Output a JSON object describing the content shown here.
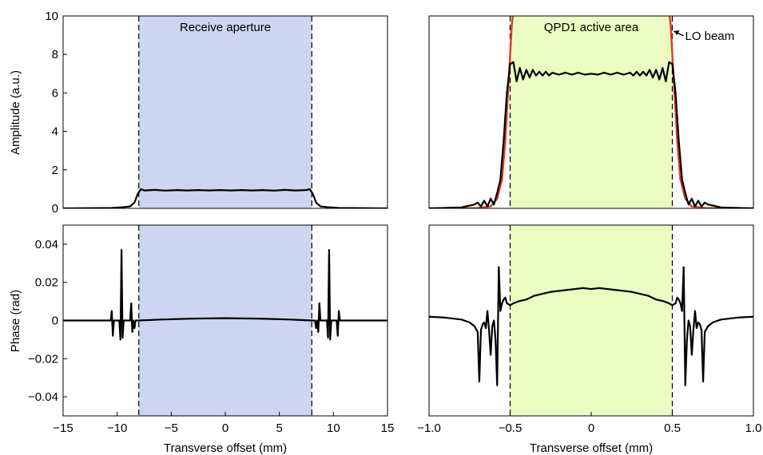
{
  "figure": {
    "x_axis_title": "Transverse offset (mm)",
    "amplitude_axis_title": "Amplitude (a.u.)",
    "phase_axis_title": "Phase (rad)"
  },
  "chart_data": [
    {
      "id": "tl",
      "type": "line",
      "xlabel": "",
      "ylabel": "Amplitude (a.u.)",
      "xlim": [
        -15,
        15
      ],
      "ylim": [
        0,
        10
      ],
      "yticks": [
        0,
        2,
        4,
        6,
        8,
        10
      ],
      "ytick_labels": [
        "0",
        "2",
        "4",
        "6",
        "8",
        "10"
      ],
      "shaded_region": {
        "x": [
          -8,
          8
        ],
        "color": "#ccd5f2"
      },
      "vlines": [
        -8,
        8
      ],
      "annotation": "Receive aperture",
      "series": [
        {
          "color": "#000000",
          "x": [
            -15,
            -10.5,
            -9.5,
            -8.8,
            -8.4,
            -8.1,
            -7.8,
            -7.5,
            -6.5,
            -5.5,
            -4.5,
            -3.5,
            -2.5,
            -1.5,
            -0.5,
            0.5,
            1.5,
            2.5,
            3.5,
            4.5,
            5.5,
            6.5,
            7.5,
            7.8,
            8.1,
            8.4,
            8.8,
            9.5,
            10.5,
            15
          ],
          "y": [
            0,
            0.02,
            0.06,
            0.1,
            0.3,
            0.75,
            1.0,
            0.93,
            0.96,
            0.92,
            0.95,
            0.93,
            0.95,
            0.93,
            0.95,
            0.93,
            0.95,
            0.93,
            0.95,
            0.92,
            0.96,
            0.93,
            0.95,
            1.0,
            0.75,
            0.3,
            0.1,
            0.06,
            0.02,
            0
          ]
        }
      ]
    },
    {
      "id": "tr",
      "type": "line",
      "xlabel": "",
      "ylabel": "",
      "xlim": [
        -1.0,
        1.0
      ],
      "ylim": [
        0,
        10
      ],
      "shaded_region": {
        "x": [
          -0.5,
          0.5
        ],
        "color": "#eafcc2"
      },
      "vlines": [
        -0.5,
        0.5
      ],
      "annotation": "QPD1 active area",
      "callout": "LO beam",
      "series": [
        {
          "color": "#e03a2a",
          "x": [
            -1.0,
            -0.8,
            -0.7,
            -0.62,
            -0.58,
            -0.55,
            -0.53,
            -0.51,
            -0.49,
            -0.46,
            0.46,
            0.49,
            0.51,
            0.53,
            0.55,
            0.58,
            0.62,
            0.7,
            0.8,
            1.0
          ],
          "y": [
            0,
            0,
            0.02,
            0.1,
            0.5,
            1.5,
            3.5,
            6.5,
            9.5,
            12,
            12,
            9.5,
            6.5,
            3.5,
            1.5,
            0.5,
            0.1,
            0.02,
            0,
            0
          ]
        },
        {
          "color": "#000000",
          "x": [
            -1.0,
            -0.8,
            -0.72,
            -0.7,
            -0.68,
            -0.66,
            -0.64,
            -0.62,
            -0.6,
            -0.58,
            -0.56,
            -0.54,
            -0.52,
            -0.5,
            -0.48,
            -0.46,
            -0.44,
            -0.42,
            -0.4,
            -0.38,
            -0.36,
            -0.34,
            -0.32,
            -0.3,
            -0.28,
            -0.26,
            -0.24,
            -0.2,
            -0.16,
            -0.12,
            -0.08,
            -0.04,
            0,
            0.04,
            0.08,
            0.12,
            0.16,
            0.2,
            0.24,
            0.26,
            0.28,
            0.3,
            0.32,
            0.34,
            0.36,
            0.38,
            0.4,
            0.42,
            0.44,
            0.46,
            0.48,
            0.5,
            0.52,
            0.54,
            0.56,
            0.58,
            0.6,
            0.62,
            0.64,
            0.66,
            0.68,
            0.7,
            0.72,
            0.8,
            1.0
          ],
          "y": [
            0,
            0.05,
            0.2,
            0.3,
            0.1,
            0.4,
            0.1,
            0.5,
            0.2,
            0.8,
            1.5,
            3.5,
            6,
            7.5,
            7.6,
            6.6,
            7.3,
            6.7,
            7.2,
            6.8,
            7.2,
            6.9,
            7.1,
            6.9,
            7.1,
            6.9,
            7.05,
            6.95,
            7.05,
            6.95,
            7.05,
            6.95,
            7.0,
            6.95,
            7.05,
            6.95,
            7.05,
            6.95,
            7.05,
            6.9,
            7.1,
            6.9,
            7.1,
            6.9,
            7.2,
            6.8,
            7.2,
            6.7,
            7.3,
            6.6,
            7.6,
            7.5,
            6,
            3.5,
            1.5,
            0.8,
            0.2,
            0.5,
            0.1,
            0.4,
            0.1,
            0.3,
            0.2,
            0.05,
            0
          ]
        }
      ]
    },
    {
      "id": "bl",
      "type": "line",
      "xlabel": "Transverse offset (mm)",
      "ylabel": "Phase (rad)",
      "xlim": [
        -15,
        15
      ],
      "ylim": [
        -0.05,
        0.05
      ],
      "xticks": [
        -15,
        -10,
        -5,
        0,
        5,
        10,
        15
      ],
      "xtick_labels": [
        "−15",
        "−10",
        "−5",
        "0",
        "5",
        "10",
        "15"
      ],
      "yticks": [
        -0.04,
        -0.02,
        0,
        0.02,
        0.04
      ],
      "ytick_labels": [
        "−0.04",
        "−0.02",
        "0",
        "0.02",
        "0.04"
      ],
      "shaded_region": {
        "x": [
          -8,
          8
        ],
        "color": "#ccd5f2"
      },
      "vlines": [
        -8,
        8
      ],
      "series": [
        {
          "color": "#000000",
          "x": [
            -15,
            -10.6,
            -10.5,
            -10.4,
            -10.3,
            -9.8,
            -9.7,
            -9.6,
            -9.5,
            -9.4,
            -9.3,
            -8.8,
            -8.7,
            -8.6,
            -8.5,
            -8.4,
            -8.3,
            -8.15,
            -8.0,
            -6,
            -3,
            0,
            3,
            6,
            8.0,
            8.15,
            8.3,
            8.4,
            8.5,
            8.6,
            8.7,
            8.8,
            9.3,
            9.4,
            9.5,
            9.6,
            9.7,
            9.8,
            10.3,
            10.4,
            10.5,
            10.6,
            15
          ],
          "y": [
            0,
            0,
            0.005,
            -0.008,
            0,
            0,
            -0.01,
            0.037,
            -0.009,
            0,
            0,
            0,
            0.009,
            -0.006,
            0,
            -0.004,
            0,
            0,
            0,
            0.0005,
            0.001,
            0.0012,
            0.001,
            0.0005,
            0,
            0,
            0,
            -0.004,
            0,
            -0.006,
            0.009,
            0,
            0,
            0,
            -0.009,
            0.037,
            -0.01,
            0,
            0,
            -0.008,
            0.005,
            0,
            0
          ]
        }
      ]
    },
    {
      "id": "br",
      "type": "line",
      "xlabel": "Transverse offset (mm)",
      "ylabel": "",
      "xlim": [
        -1.0,
        1.0
      ],
      "ylim": [
        -0.05,
        0.05
      ],
      "xticks": [
        -1.0,
        -0.5,
        0,
        0.5,
        1.0
      ],
      "xtick_labels": [
        "−1.0",
        "−0.5",
        "0",
        "0.5",
        "1.0"
      ],
      "shaded_region": {
        "x": [
          -0.5,
          0.5
        ],
        "color": "#eafcc2"
      },
      "vlines": [
        -0.5,
        0.5
      ],
      "series": [
        {
          "color": "#000000",
          "x": [
            -1.0,
            -0.9,
            -0.8,
            -0.75,
            -0.72,
            -0.7,
            -0.69,
            -0.68,
            -0.67,
            -0.66,
            -0.65,
            -0.64,
            -0.63,
            -0.62,
            -0.61,
            -0.6,
            -0.59,
            -0.58,
            -0.57,
            -0.56,
            -0.55,
            -0.54,
            -0.53,
            -0.52,
            -0.5,
            -0.48,
            -0.45,
            -0.4,
            -0.35,
            -0.3,
            -0.25,
            -0.2,
            -0.15,
            -0.1,
            -0.05,
            0,
            0.05,
            0.1,
            0.15,
            0.2,
            0.25,
            0.3,
            0.35,
            0.4,
            0.45,
            0.48,
            0.5,
            0.52,
            0.53,
            0.54,
            0.55,
            0.56,
            0.57,
            0.58,
            0.59,
            0.6,
            0.61,
            0.62,
            0.63,
            0.64,
            0.65,
            0.66,
            0.67,
            0.68,
            0.69,
            0.7,
            0.72,
            0.75,
            0.8,
            0.9,
            1.0
          ],
          "y": [
            0.002,
            0.0015,
            0.0005,
            -0.001,
            -0.003,
            -0.006,
            -0.032,
            -0.005,
            -0.002,
            -0.001,
            -0.004,
            0.005,
            -0.005,
            -0.018,
            -0.003,
            0.0,
            -0.01,
            -0.034,
            0.028,
            0.005,
            0.009,
            0.011,
            0.012,
            0.009,
            0.008,
            0.009,
            0.01,
            0.011,
            0.013,
            0.014,
            0.015,
            0.0155,
            0.016,
            0.0165,
            0.017,
            0.0165,
            0.017,
            0.0165,
            0.016,
            0.0155,
            0.015,
            0.014,
            0.013,
            0.011,
            0.01,
            0.009,
            0.008,
            0.009,
            0.012,
            0.011,
            0.009,
            0.005,
            0.028,
            -0.034,
            -0.01,
            0.0,
            -0.003,
            -0.018,
            -0.005,
            0.005,
            -0.004,
            -0.001,
            -0.002,
            -0.005,
            -0.032,
            -0.006,
            -0.003,
            -0.001,
            0.0005,
            0.0015,
            0.002
          ]
        }
      ]
    }
  ]
}
